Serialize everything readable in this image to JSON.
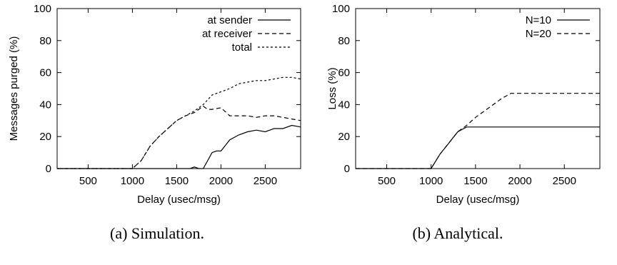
{
  "chart_data": [
    {
      "type": "line",
      "caption": "(a) Simulation.",
      "xlabel": "Delay (usec/msg)",
      "ylabel": "Messages purged (%)",
      "xlim": [
        150,
        2900
      ],
      "ylim": [
        0,
        100
      ],
      "xticks": [
        500,
        1000,
        1500,
        2000,
        2500
      ],
      "yticks": [
        0,
        20,
        40,
        60,
        80,
        100
      ],
      "grid": false,
      "legend_position": "top-right",
      "series": [
        {
          "name": "at sender",
          "style": "solid",
          "points": [
            [
              150,
              0
            ],
            [
              1650,
              0
            ],
            [
              1700,
              1
            ],
            [
              1750,
              0
            ],
            [
              1800,
              0
            ],
            [
              1900,
              10
            ],
            [
              1950,
              11
            ],
            [
              2000,
              11
            ],
            [
              2100,
              18
            ],
            [
              2200,
              21
            ],
            [
              2300,
              23
            ],
            [
              2400,
              24
            ],
            [
              2500,
              23
            ],
            [
              2600,
              25
            ],
            [
              2700,
              25
            ],
            [
              2800,
              27
            ],
            [
              2900,
              26
            ]
          ]
        },
        {
          "name": "at receiver",
          "style": "dashed",
          "points": [
            [
              150,
              0
            ],
            [
              1000,
              0
            ],
            [
              1100,
              5
            ],
            [
              1200,
              14
            ],
            [
              1300,
              20
            ],
            [
              1400,
              25
            ],
            [
              1500,
              30
            ],
            [
              1600,
              33
            ],
            [
              1700,
              35
            ],
            [
              1750,
              37
            ],
            [
              1800,
              39
            ],
            [
              1850,
              37
            ],
            [
              1900,
              37
            ],
            [
              2000,
              38
            ],
            [
              2100,
              33
            ],
            [
              2200,
              33
            ],
            [
              2300,
              33
            ],
            [
              2400,
              32
            ],
            [
              2500,
              33
            ],
            [
              2600,
              33
            ],
            [
              2700,
              32
            ],
            [
              2800,
              31
            ],
            [
              2900,
              30
            ]
          ]
        },
        {
          "name": "total",
          "style": "dotted",
          "points": [
            [
              150,
              0
            ],
            [
              1000,
              0
            ],
            [
              1100,
              5
            ],
            [
              1200,
              14
            ],
            [
              1300,
              20
            ],
            [
              1400,
              25
            ],
            [
              1500,
              30
            ],
            [
              1600,
              33
            ],
            [
              1700,
              36
            ],
            [
              1800,
              40
            ],
            [
              1900,
              46
            ],
            [
              2000,
              48
            ],
            [
              2100,
              50
            ],
            [
              2200,
              53
            ],
            [
              2300,
              54
            ],
            [
              2400,
              55
            ],
            [
              2500,
              55
            ],
            [
              2600,
              56
            ],
            [
              2700,
              57
            ],
            [
              2800,
              57
            ],
            [
              2900,
              56
            ]
          ]
        }
      ]
    },
    {
      "type": "line",
      "caption": "(b) Analytical.",
      "xlabel": "Delay (usec/msg)",
      "ylabel": "Loss (%)",
      "xlim": [
        150,
        2900
      ],
      "ylim": [
        0,
        100
      ],
      "xticks": [
        500,
        1000,
        1500,
        2000,
        2500
      ],
      "yticks": [
        0,
        20,
        40,
        60,
        80,
        100
      ],
      "grid": false,
      "legend_position": "top-right",
      "series": [
        {
          "name": "N=10",
          "style": "solid",
          "points": [
            [
              150,
              0
            ],
            [
              1000,
              0
            ],
            [
              1100,
              9
            ],
            [
              1200,
              16
            ],
            [
              1300,
              23
            ],
            [
              1400,
              26
            ],
            [
              2900,
              26
            ]
          ]
        },
        {
          "name": "N=20",
          "style": "dashed",
          "points": [
            [
              150,
              0
            ],
            [
              1000,
              0
            ],
            [
              1100,
              9
            ],
            [
              1200,
              16
            ],
            [
              1300,
              23
            ],
            [
              1400,
              27
            ],
            [
              1500,
              32
            ],
            [
              1600,
              36
            ],
            [
              1700,
              40
            ],
            [
              1800,
              44
            ],
            [
              1900,
              47
            ],
            [
              2900,
              47
            ]
          ]
        }
      ]
    }
  ]
}
